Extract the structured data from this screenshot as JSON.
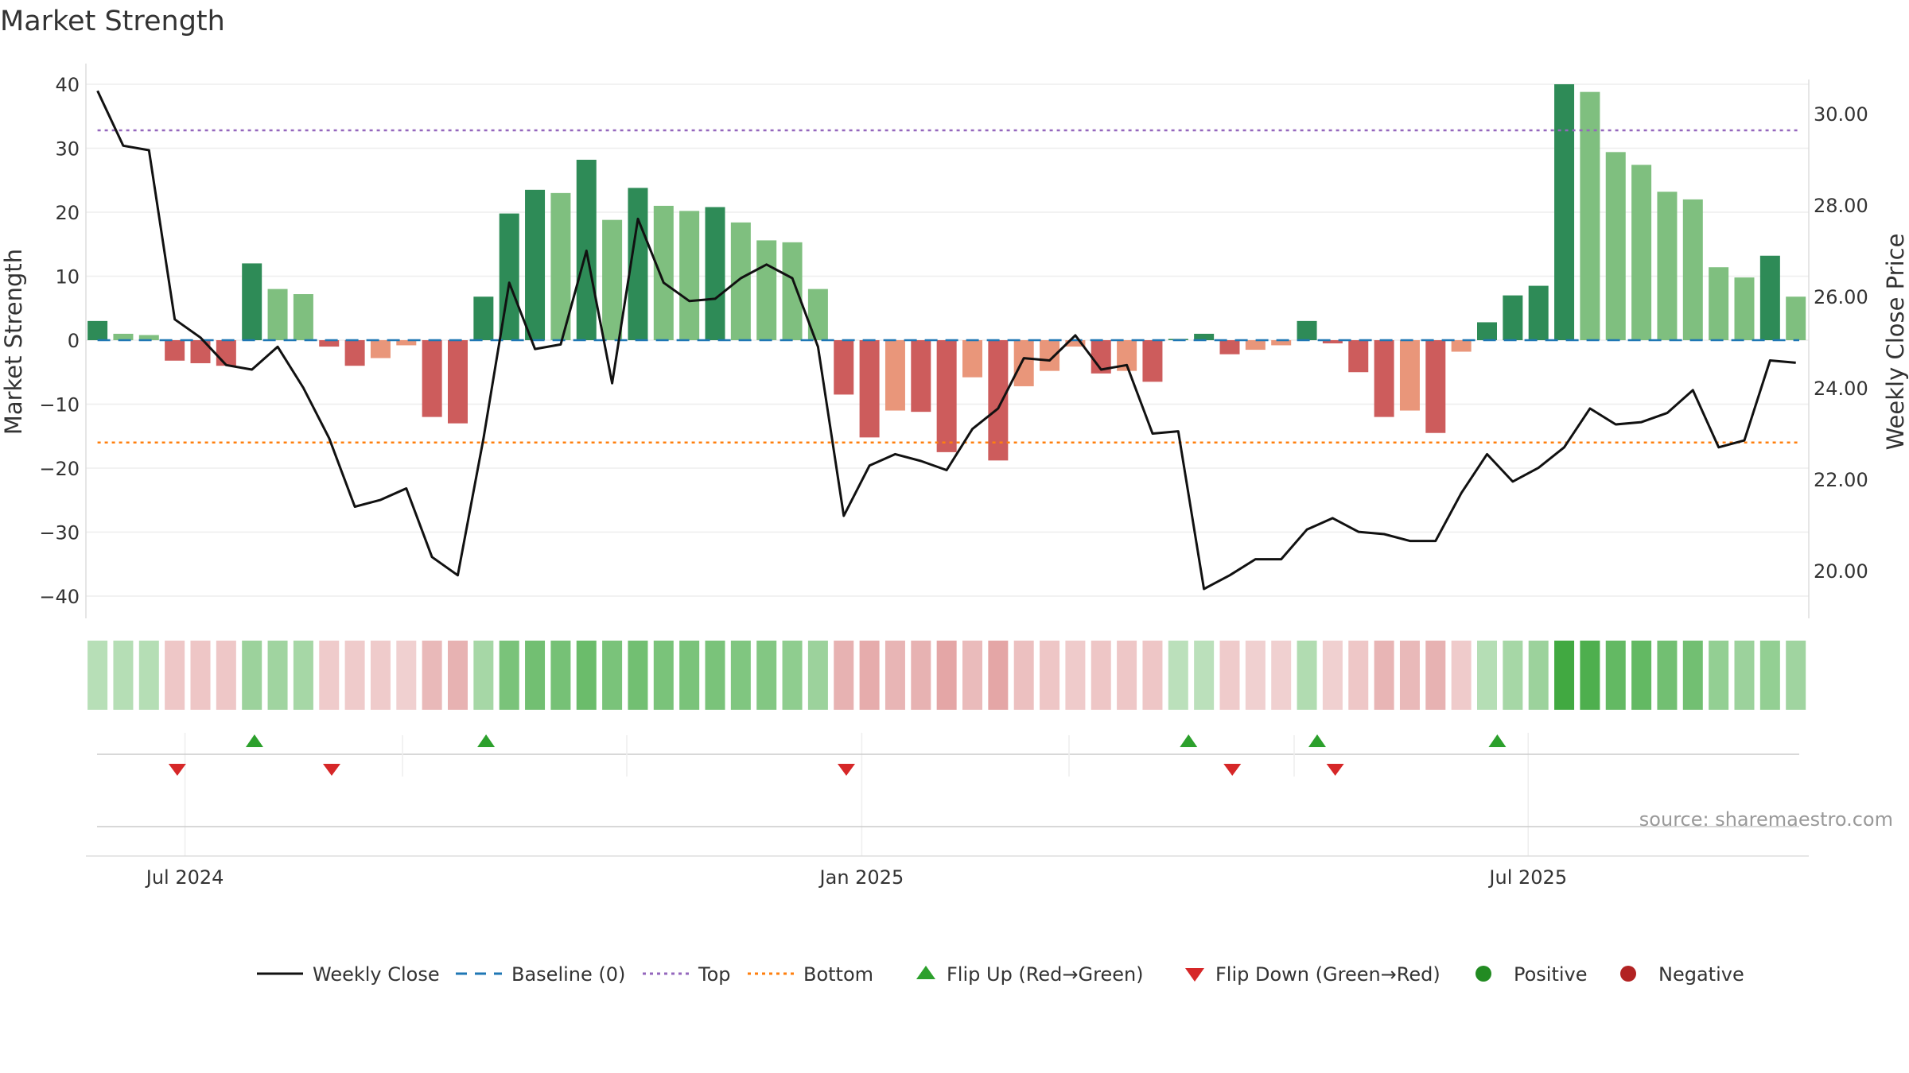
{
  "chart_data": {
    "type": "bar",
    "title": "Market Strength",
    "ylabel_left": "Market Strength",
    "ylabel_right": "Weekly Close Price",
    "source": "source: sharemaestro.com",
    "y_left_range": [
      -43,
      43
    ],
    "y_right_range": [
      19.0,
      31.5
    ],
    "y_left_ticks": [
      {
        "v": 40,
        "label": "40"
      },
      {
        "v": 30,
        "label": "30"
      },
      {
        "v": 20,
        "label": "20"
      },
      {
        "v": 10,
        "label": "10"
      },
      {
        "v": 0,
        "label": "0"
      },
      {
        "v": -10,
        "label": "−10"
      },
      {
        "v": -20,
        "label": "−20"
      },
      {
        "v": -30,
        "label": "−30"
      },
      {
        "v": -40,
        "label": "−40"
      }
    ],
    "y_right_ticks": [
      {
        "v": 30,
        "label": "30.00"
      },
      {
        "v": 28,
        "label": "28.00"
      },
      {
        "v": 26,
        "label": "26.00"
      },
      {
        "v": 24,
        "label": "24.00"
      },
      {
        "v": 22,
        "label": "22.00"
      },
      {
        "v": 20,
        "label": "20.00"
      }
    ],
    "x_ticks": [
      {
        "index": 3.4,
        "label": "Jul 2024"
      },
      {
        "index": 29.7,
        "label": "Jan 2025"
      },
      {
        "index": 55.6,
        "label": "Jul 2025"
      }
    ],
    "reference_lines": {
      "top": 32.8,
      "bottom": -16.0,
      "baseline": 0
    },
    "weeks": 67,
    "strength": [
      3,
      1,
      0.8,
      -3.2,
      -3.6,
      -4,
      12,
      8,
      7.2,
      -1,
      -4,
      -2.8,
      -0.8,
      -12,
      -13,
      6.8,
      19.8,
      23.5,
      23,
      28.2,
      18.8,
      23.8,
      21,
      20.2,
      20.8,
      18.4,
      15.6,
      15.3,
      8,
      -8.5,
      -15.2,
      -11,
      -11.2,
      -17.5,
      -5.8,
      -18.8,
      -7.2,
      -4.8,
      -1,
      -5.2,
      -4.8,
      -6.5,
      0.2,
      1,
      -2.2,
      -1.5,
      -0.8,
      3,
      -0.5,
      -5,
      -12,
      -11,
      -14.5,
      -1.8,
      2.8,
      7,
      8.5,
      40,
      38.8,
      29.4,
      27.4,
      23.2,
      22,
      11.4,
      9.8,
      13.2,
      6.8
    ],
    "bar_shade": [
      "dark",
      "light",
      "light",
      "dark",
      "dark",
      "dark",
      "dark",
      "light",
      "light",
      "dark",
      "dark",
      "light",
      "light",
      "dark",
      "dark",
      "dark",
      "dark",
      "dark",
      "light",
      "dark",
      "light",
      "dark",
      "light",
      "light",
      "dark",
      "light",
      "light",
      "light",
      "light",
      "dark",
      "dark",
      "light",
      "dark",
      "dark",
      "light",
      "dark",
      "light",
      "light",
      "light",
      "dark",
      "light",
      "dark",
      "dark",
      "dark",
      "dark",
      "light",
      "light",
      "dark",
      "dark",
      "dark",
      "dark",
      "light",
      "dark",
      "light",
      "dark",
      "dark",
      "dark",
      "dark",
      "light",
      "light",
      "light",
      "light",
      "light",
      "light",
      "light",
      "dark",
      "light"
    ],
    "weekly_close": [
      30.5,
      29.3,
      29.2,
      25.5,
      25.1,
      24.5,
      24.4,
      24.9,
      24.0,
      22.9,
      21.4,
      21.55,
      21.8,
      20.3,
      19.9,
      22.9,
      26.3,
      24.85,
      24.95,
      27.0,
      24.1,
      27.7,
      26.3,
      25.9,
      25.95,
      26.4,
      26.7,
      26.4,
      24.9,
      21.2,
      22.3,
      22.55,
      22.4,
      22.2,
      23.1,
      23.55,
      24.65,
      24.6,
      25.15,
      24.4,
      24.5,
      23.0,
      23.05,
      19.6,
      19.9,
      20.25,
      20.25,
      20.9,
      21.15,
      20.85,
      20.8,
      20.65,
      20.65,
      21.7,
      22.55,
      21.95,
      22.25,
      22.7,
      23.55,
      23.2,
      23.25,
      23.45,
      23.95,
      22.7,
      22.85,
      24.6,
      24.55
    ],
    "heat_strip": [
      0.28,
      0.3,
      0.3,
      -0.28,
      -0.3,
      -0.28,
      0.45,
      0.42,
      0.38,
      -0.25,
      -0.25,
      -0.25,
      -0.22,
      -0.4,
      -0.45,
      0.38,
      0.65,
      0.7,
      0.68,
      0.75,
      0.66,
      0.7,
      0.66,
      0.66,
      0.66,
      0.62,
      0.6,
      0.52,
      0.45,
      -0.45,
      -0.5,
      -0.42,
      -0.45,
      -0.55,
      -0.38,
      -0.55,
      -0.35,
      -0.3,
      -0.25,
      -0.3,
      -0.28,
      -0.3,
      0.25,
      0.25,
      -0.25,
      -0.22,
      -0.22,
      0.32,
      -0.22,
      -0.28,
      -0.42,
      -0.4,
      -0.45,
      -0.25,
      0.3,
      0.38,
      0.45,
      1.0,
      0.92,
      0.8,
      0.8,
      0.7,
      0.7,
      0.5,
      0.45,
      0.5,
      0.42
    ],
    "flip_up_weeks": [
      6.1,
      15.1,
      42.4,
      47.4,
      54.4
    ],
    "flip_down_weeks": [
      3.1,
      9.1,
      29.1,
      44.1,
      48.1
    ],
    "colors": {
      "pos_dark": "#2e8b57",
      "pos_light": "#7fbf7f",
      "neg_dark": "#cd5c5c",
      "neg_light": "#e9967a",
      "line": "#111111",
      "baseline": "#1f77b4",
      "top": "#9467bd",
      "bottom": "#ff7f0e",
      "flip_up": "#2ca02c",
      "flip_down": "#d62728",
      "positive": "#228b22",
      "negative": "#b22222"
    },
    "legend": [
      "Weekly Close",
      "Baseline (0)",
      "Top",
      "Bottom",
      "Flip Up (Red→Green)",
      "Flip Down (Green→Red)",
      "Positive",
      "Negative"
    ],
    "legend_placement": "bottom-center",
    "grid": true
  }
}
